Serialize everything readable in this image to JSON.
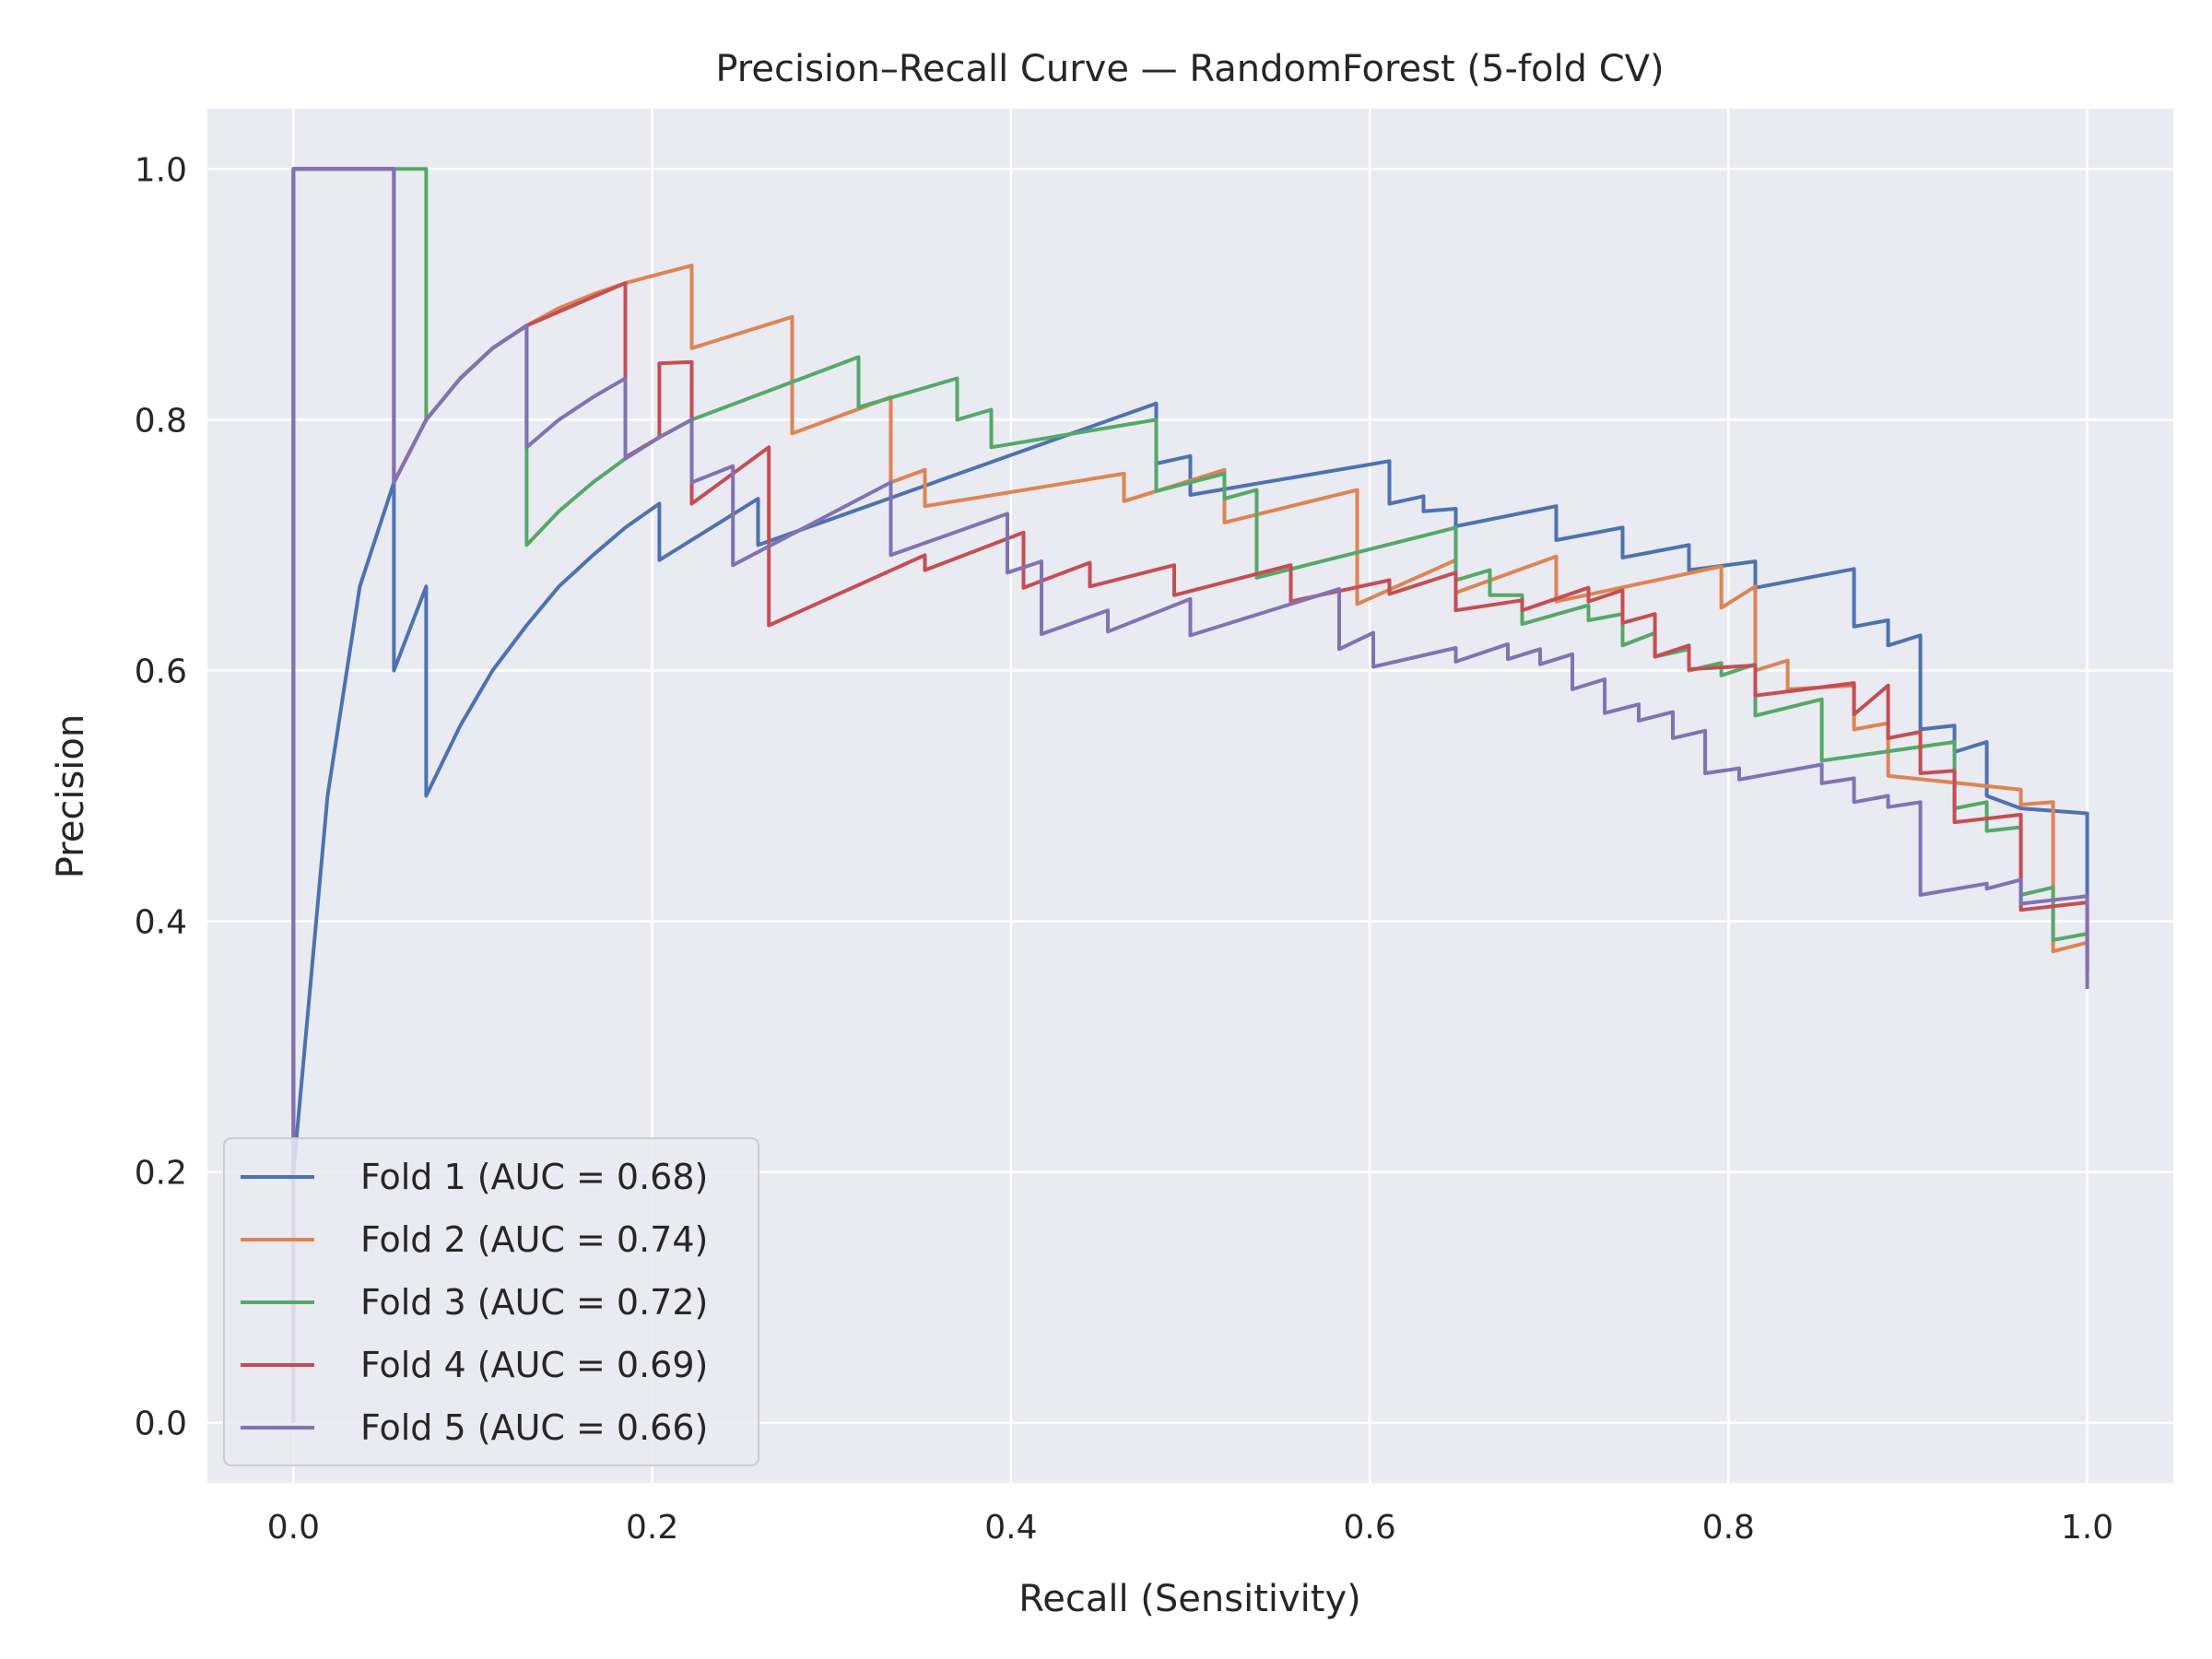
{
  "chart_data": {
    "type": "line",
    "title": "Precision–Recall Curve — RandomForest (5-fold CV)",
    "xlabel": "Recall (Sensitivity)",
    "ylabel": "Precision",
    "xlim": [
      -0.048,
      1.048
    ],
    "ylim": [
      -0.048,
      1.048
    ],
    "xticks": [
      "0.0",
      "0.2",
      "0.4",
      "0.6",
      "0.8",
      "1.0"
    ],
    "yticks": [
      "0.0",
      "0.2",
      "0.4",
      "0.6",
      "0.8",
      "1.0"
    ],
    "grid": true,
    "background": "#eaeaf2",
    "legend_position": "lower-left",
    "series": [
      {
        "name": "Fold 1 (AUC = 0.68)",
        "color": "#4c72b0",
        "points": [
          [
            0.0,
            0.0
          ],
          [
            0.0,
            1.0
          ],
          [
            0.0,
            0.2
          ],
          [
            0.019,
            0.5
          ],
          [
            0.037,
            0.667
          ],
          [
            0.056,
            0.75
          ],
          [
            0.056,
            0.6
          ],
          [
            0.074,
            0.667
          ],
          [
            0.074,
            0.5
          ],
          [
            0.093,
            0.556
          ],
          [
            0.111,
            0.6
          ],
          [
            0.13,
            0.636
          ],
          [
            0.148,
            0.667
          ],
          [
            0.167,
            0.692
          ],
          [
            0.185,
            0.714
          ],
          [
            0.204,
            0.733
          ],
          [
            0.204,
            0.688
          ],
          [
            0.259,
            0.737
          ],
          [
            0.259,
            0.7
          ],
          [
            0.481,
            0.813
          ],
          [
            0.481,
            0.765
          ],
          [
            0.5,
            0.771
          ],
          [
            0.5,
            0.74
          ],
          [
            0.611,
            0.767
          ],
          [
            0.611,
            0.733
          ],
          [
            0.63,
            0.739
          ],
          [
            0.63,
            0.727
          ],
          [
            0.648,
            0.729
          ],
          [
            0.648,
            0.715
          ],
          [
            0.704,
            0.731
          ],
          [
            0.704,
            0.704
          ],
          [
            0.741,
            0.714
          ],
          [
            0.741,
            0.69
          ],
          [
            0.778,
            0.7
          ],
          [
            0.778,
            0.68
          ],
          [
            0.815,
            0.687
          ],
          [
            0.815,
            0.666
          ],
          [
            0.87,
            0.681
          ],
          [
            0.87,
            0.635
          ],
          [
            0.889,
            0.64
          ],
          [
            0.889,
            0.62
          ],
          [
            0.907,
            0.628
          ],
          [
            0.907,
            0.553
          ],
          [
            0.926,
            0.556
          ],
          [
            0.926,
            0.535
          ],
          [
            0.944,
            0.543
          ],
          [
            0.944,
            0.5
          ],
          [
            0.963,
            0.49
          ],
          [
            1.0,
            0.486
          ],
          [
            1.0,
            0.42
          ]
        ]
      },
      {
        "name": "Fold 2 (AUC = 0.74)",
        "color": "#dd8452",
        "points": [
          [
            0.0,
            0.0
          ],
          [
            0.0,
            1.0
          ],
          [
            0.056,
            1.0
          ],
          [
            0.056,
            0.75
          ],
          [
            0.074,
            0.8
          ],
          [
            0.093,
            0.833
          ],
          [
            0.111,
            0.857
          ],
          [
            0.13,
            0.875
          ],
          [
            0.148,
            0.889
          ],
          [
            0.167,
            0.9
          ],
          [
            0.185,
            0.909
          ],
          [
            0.222,
            0.923
          ],
          [
            0.222,
            0.857
          ],
          [
            0.278,
            0.882
          ],
          [
            0.278,
            0.789
          ],
          [
            0.333,
            0.818
          ],
          [
            0.333,
            0.75
          ],
          [
            0.352,
            0.76
          ],
          [
            0.352,
            0.731
          ],
          [
            0.463,
            0.757
          ],
          [
            0.463,
            0.735
          ],
          [
            0.519,
            0.76
          ],
          [
            0.519,
            0.718
          ],
          [
            0.593,
            0.744
          ],
          [
            0.593,
            0.653
          ],
          [
            0.648,
            0.688
          ],
          [
            0.648,
            0.662
          ],
          [
            0.704,
            0.691
          ],
          [
            0.704,
            0.655
          ],
          [
            0.796,
            0.683
          ],
          [
            0.796,
            0.65
          ],
          [
            0.815,
            0.667
          ],
          [
            0.815,
            0.6
          ],
          [
            0.833,
            0.608
          ],
          [
            0.833,
            0.585
          ],
          [
            0.87,
            0.588
          ],
          [
            0.87,
            0.553
          ],
          [
            0.889,
            0.558
          ],
          [
            0.889,
            0.516
          ],
          [
            0.963,
            0.505
          ],
          [
            0.963,
            0.493
          ],
          [
            0.981,
            0.495
          ],
          [
            0.981,
            0.376
          ],
          [
            1.0,
            0.383
          ],
          [
            1.0,
            0.36
          ]
        ]
      },
      {
        "name": "Fold 3 (AUC = 0.72)",
        "color": "#55a868",
        "points": [
          [
            0.0,
            0.0
          ],
          [
            0.0,
            1.0
          ],
          [
            0.074,
            1.0
          ],
          [
            0.074,
            0.8
          ],
          [
            0.093,
            0.833
          ],
          [
            0.111,
            0.857
          ],
          [
            0.13,
            0.875
          ],
          [
            0.13,
            0.7
          ],
          [
            0.148,
            0.727
          ],
          [
            0.167,
            0.75
          ],
          [
            0.185,
            0.769
          ],
          [
            0.204,
            0.786
          ],
          [
            0.222,
            0.8
          ],
          [
            0.315,
            0.85
          ],
          [
            0.315,
            0.81
          ],
          [
            0.37,
            0.833
          ],
          [
            0.37,
            0.8
          ],
          [
            0.389,
            0.808
          ],
          [
            0.389,
            0.778
          ],
          [
            0.481,
            0.8
          ],
          [
            0.481,
            0.743
          ],
          [
            0.519,
            0.757
          ],
          [
            0.519,
            0.737
          ],
          [
            0.537,
            0.744
          ],
          [
            0.537,
            0.674
          ],
          [
            0.648,
            0.714
          ],
          [
            0.648,
            0.672
          ],
          [
            0.667,
            0.68
          ],
          [
            0.667,
            0.66
          ],
          [
            0.685,
            0.66
          ],
          [
            0.685,
            0.637
          ],
          [
            0.722,
            0.652
          ],
          [
            0.722,
            0.64
          ],
          [
            0.741,
            0.645
          ],
          [
            0.741,
            0.62
          ],
          [
            0.759,
            0.63
          ],
          [
            0.759,
            0.611
          ],
          [
            0.778,
            0.617
          ],
          [
            0.778,
            0.6
          ],
          [
            0.796,
            0.606
          ],
          [
            0.796,
            0.596
          ],
          [
            0.815,
            0.605
          ],
          [
            0.815,
            0.564
          ],
          [
            0.852,
            0.577
          ],
          [
            0.852,
            0.528
          ],
          [
            0.926,
            0.543
          ],
          [
            0.926,
            0.49
          ],
          [
            0.944,
            0.495
          ],
          [
            0.944,
            0.472
          ],
          [
            0.963,
            0.475
          ],
          [
            0.963,
            0.421
          ],
          [
            0.981,
            0.427
          ],
          [
            0.981,
            0.385
          ],
          [
            1.0,
            0.39
          ],
          [
            1.0,
            0.36
          ]
        ]
      },
      {
        "name": "Fold 4 (AUC = 0.69)",
        "color": "#c44e52",
        "points": [
          [
            0.0,
            0.0
          ],
          [
            0.0,
            1.0
          ],
          [
            0.056,
            1.0
          ],
          [
            0.056,
            0.75
          ],
          [
            0.074,
            0.8
          ],
          [
            0.093,
            0.833
          ],
          [
            0.111,
            0.857
          ],
          [
            0.13,
            0.875
          ],
          [
            0.185,
            0.909
          ],
          [
            0.185,
            0.77
          ],
          [
            0.204,
            0.786
          ],
          [
            0.204,
            0.845
          ],
          [
            0.222,
            0.846
          ],
          [
            0.222,
            0.733
          ],
          [
            0.265,
            0.778
          ],
          [
            0.265,
            0.636
          ],
          [
            0.352,
            0.692
          ],
          [
            0.352,
            0.68
          ],
          [
            0.407,
            0.71
          ],
          [
            0.407,
            0.666
          ],
          [
            0.444,
            0.686
          ],
          [
            0.444,
            0.667
          ],
          [
            0.491,
            0.684
          ],
          [
            0.491,
            0.66
          ],
          [
            0.556,
            0.684
          ],
          [
            0.556,
            0.655
          ],
          [
            0.611,
            0.672
          ],
          [
            0.611,
            0.661
          ],
          [
            0.648,
            0.678
          ],
          [
            0.648,
            0.648
          ],
          [
            0.685,
            0.656
          ],
          [
            0.685,
            0.648
          ],
          [
            0.722,
            0.666
          ],
          [
            0.722,
            0.655
          ],
          [
            0.741,
            0.664
          ],
          [
            0.741,
            0.638
          ],
          [
            0.759,
            0.645
          ],
          [
            0.759,
            0.611
          ],
          [
            0.778,
            0.62
          ],
          [
            0.778,
            0.601
          ],
          [
            0.815,
            0.604
          ],
          [
            0.815,
            0.58
          ],
          [
            0.87,
            0.59
          ],
          [
            0.87,
            0.565
          ],
          [
            0.889,
            0.588
          ],
          [
            0.889,
            0.546
          ],
          [
            0.907,
            0.551
          ],
          [
            0.907,
            0.518
          ],
          [
            0.926,
            0.52
          ],
          [
            0.926,
            0.479
          ],
          [
            0.963,
            0.485
          ],
          [
            0.963,
            0.409
          ],
          [
            1.0,
            0.415
          ],
          [
            1.0,
            0.36
          ]
        ]
      },
      {
        "name": "Fold 5 (AUC = 0.66)",
        "color": "#8172b3",
        "points": [
          [
            0.0,
            0.0
          ],
          [
            0.0,
            1.0
          ],
          [
            0.056,
            1.0
          ],
          [
            0.056,
            0.75
          ],
          [
            0.074,
            0.8
          ],
          [
            0.093,
            0.833
          ],
          [
            0.111,
            0.857
          ],
          [
            0.13,
            0.875
          ],
          [
            0.13,
            0.778
          ],
          [
            0.148,
            0.8
          ],
          [
            0.167,
            0.818
          ],
          [
            0.185,
            0.833
          ],
          [
            0.185,
            0.769
          ],
          [
            0.204,
            0.786
          ],
          [
            0.222,
            0.8
          ],
          [
            0.222,
            0.75
          ],
          [
            0.245,
            0.763
          ],
          [
            0.245,
            0.684
          ],
          [
            0.333,
            0.75
          ],
          [
            0.333,
            0.692
          ],
          [
            0.398,
            0.725
          ],
          [
            0.398,
            0.678
          ],
          [
            0.417,
            0.687
          ],
          [
            0.417,
            0.629
          ],
          [
            0.454,
            0.648
          ],
          [
            0.454,
            0.631
          ],
          [
            0.5,
            0.657
          ],
          [
            0.5,
            0.628
          ],
          [
            0.583,
            0.665
          ],
          [
            0.583,
            0.617
          ],
          [
            0.602,
            0.63
          ],
          [
            0.602,
            0.603
          ],
          [
            0.648,
            0.618
          ],
          [
            0.648,
            0.607
          ],
          [
            0.677,
            0.621
          ],
          [
            0.677,
            0.609
          ],
          [
            0.695,
            0.617
          ],
          [
            0.695,
            0.605
          ],
          [
            0.713,
            0.613
          ],
          [
            0.713,
            0.585
          ],
          [
            0.731,
            0.593
          ],
          [
            0.731,
            0.566
          ],
          [
            0.75,
            0.573
          ],
          [
            0.75,
            0.56
          ],
          [
            0.769,
            0.567
          ],
          [
            0.769,
            0.546
          ],
          [
            0.787,
            0.552
          ],
          [
            0.787,
            0.518
          ],
          [
            0.806,
            0.522
          ],
          [
            0.806,
            0.513
          ],
          [
            0.852,
            0.525
          ],
          [
            0.852,
            0.51
          ],
          [
            0.87,
            0.514
          ],
          [
            0.87,
            0.495
          ],
          [
            0.889,
            0.5
          ],
          [
            0.889,
            0.491
          ],
          [
            0.907,
            0.495
          ],
          [
            0.907,
            0.421
          ],
          [
            0.944,
            0.43
          ],
          [
            0.944,
            0.426
          ],
          [
            0.963,
            0.433
          ],
          [
            0.963,
            0.414
          ],
          [
            1.0,
            0.42
          ],
          [
            1.0,
            0.346
          ]
        ]
      }
    ]
  }
}
